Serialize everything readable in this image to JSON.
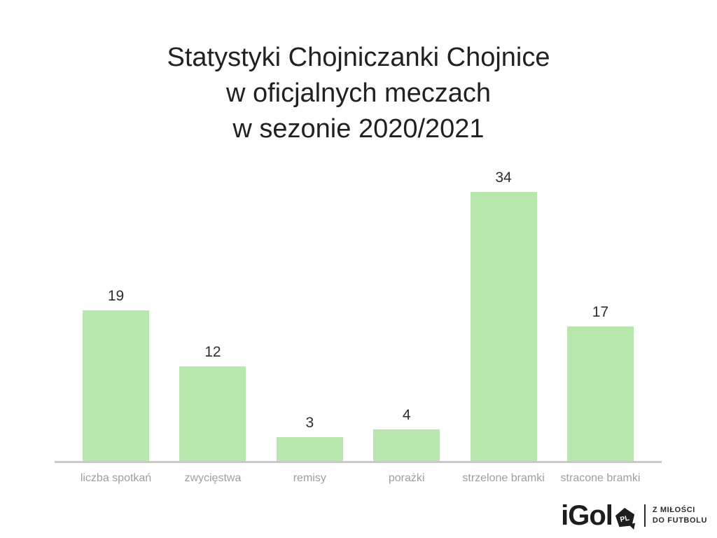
{
  "title": {
    "lines": [
      "Statystyki Chojniczanki Chojnice",
      "w oficjalnych meczach",
      "w sezonie 2020/2021"
    ]
  },
  "chart_data": {
    "type": "bar",
    "title": "Statystyki Chojniczanki Chojnice w oficjalnych meczach w sezonie 2020/2021",
    "categories": [
      "liczba spotkań",
      "zwycięstwa",
      "remisy",
      "porażki",
      "strzelone bramki",
      "stracone bramki"
    ],
    "values": [
      19,
      12,
      3,
      4,
      34,
      17
    ],
    "xlabel": "",
    "ylabel": "",
    "ylim": [
      0,
      34
    ],
    "grid": false,
    "data_labels": true,
    "legend": "none",
    "colors": {
      "bar": "#b7e7ac",
      "value_label": "#2e2e2e",
      "category_label": "#9e9e9e",
      "axis_line": "#c9c9c9",
      "title": "#212121"
    }
  },
  "footer_logo": {
    "brand": "iGol",
    "badge_text": "PL",
    "tagline_line1": "Z MIŁOŚCI",
    "tagline_line2": "DO FUTBOLU",
    "color": "#1d1d1d"
  }
}
